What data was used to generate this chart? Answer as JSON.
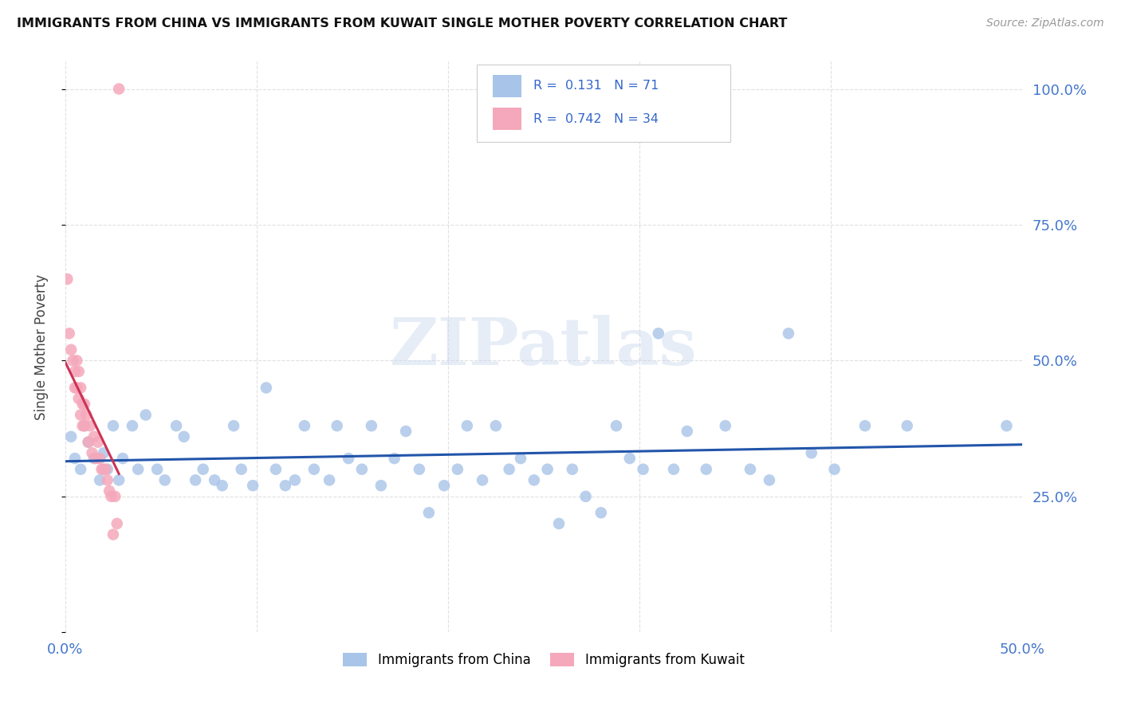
{
  "title": "IMMIGRANTS FROM CHINA VS IMMIGRANTS FROM KUWAIT SINGLE MOTHER POVERTY CORRELATION CHART",
  "source": "Source: ZipAtlas.com",
  "ylabel": "Single Mother Poverty",
  "xlim": [
    0.0,
    0.5
  ],
  "ylim": [
    0.0,
    1.05
  ],
  "x_ticks": [
    0.0,
    0.1,
    0.2,
    0.3,
    0.4,
    0.5
  ],
  "x_tick_labels": [
    "0.0%",
    "",
    "",
    "",
    "",
    "50.0%"
  ],
  "y_ticks": [
    0.0,
    0.25,
    0.5,
    0.75,
    1.0
  ],
  "y_tick_labels_right": [
    "",
    "25.0%",
    "50.0%",
    "75.0%",
    "100.0%"
  ],
  "china_color": "#a8c4e8",
  "kuwait_color": "#f5a8bb",
  "china_line_color": "#2255aa",
  "kuwait_line_color": "#cc3355",
  "R_china": 0.131,
  "N_china": 71,
  "R_kuwait": 0.742,
  "N_kuwait": 34,
  "legend_label_china": "Immigrants from China",
  "legend_label_kuwait": "Immigrants from Kuwait",
  "watermark": "ZIPatlas",
  "china_x": [
    0.003,
    0.005,
    0.008,
    0.01,
    0.012,
    0.015,
    0.018,
    0.02,
    0.022,
    0.025,
    0.028,
    0.03,
    0.035,
    0.038,
    0.042,
    0.048,
    0.052,
    0.058,
    0.062,
    0.068,
    0.072,
    0.078,
    0.082,
    0.088,
    0.092,
    0.098,
    0.105,
    0.11,
    0.115,
    0.12,
    0.125,
    0.13,
    0.138,
    0.142,
    0.148,
    0.155,
    0.16,
    0.165,
    0.172,
    0.178,
    0.185,
    0.19,
    0.198,
    0.205,
    0.21,
    0.218,
    0.225,
    0.232,
    0.238,
    0.245,
    0.252,
    0.258,
    0.265,
    0.272,
    0.28,
    0.288,
    0.295,
    0.302,
    0.31,
    0.318,
    0.325,
    0.335,
    0.345,
    0.358,
    0.368,
    0.378,
    0.39,
    0.402,
    0.418,
    0.44,
    0.492
  ],
  "china_y": [
    0.36,
    0.32,
    0.3,
    0.38,
    0.35,
    0.32,
    0.28,
    0.33,
    0.3,
    0.38,
    0.28,
    0.32,
    0.38,
    0.3,
    0.4,
    0.3,
    0.28,
    0.38,
    0.36,
    0.28,
    0.3,
    0.28,
    0.27,
    0.38,
    0.3,
    0.27,
    0.45,
    0.3,
    0.27,
    0.28,
    0.38,
    0.3,
    0.28,
    0.38,
    0.32,
    0.3,
    0.38,
    0.27,
    0.32,
    0.37,
    0.3,
    0.22,
    0.27,
    0.3,
    0.38,
    0.28,
    0.38,
    0.3,
    0.32,
    0.28,
    0.3,
    0.2,
    0.3,
    0.25,
    0.22,
    0.38,
    0.32,
    0.3,
    0.55,
    0.3,
    0.37,
    0.3,
    0.38,
    0.3,
    0.28,
    0.55,
    0.33,
    0.3,
    0.38,
    0.38,
    0.38
  ],
  "kuwait_x": [
    0.001,
    0.002,
    0.003,
    0.004,
    0.005,
    0.005,
    0.006,
    0.006,
    0.007,
    0.007,
    0.008,
    0.008,
    0.009,
    0.009,
    0.01,
    0.01,
    0.011,
    0.012,
    0.013,
    0.014,
    0.015,
    0.016,
    0.017,
    0.018,
    0.019,
    0.02,
    0.021,
    0.022,
    0.023,
    0.024,
    0.025,
    0.026,
    0.027,
    0.028
  ],
  "kuwait_y": [
    0.65,
    0.55,
    0.52,
    0.5,
    0.48,
    0.45,
    0.5,
    0.45,
    0.48,
    0.43,
    0.45,
    0.4,
    0.42,
    0.38,
    0.42,
    0.38,
    0.4,
    0.35,
    0.38,
    0.33,
    0.36,
    0.32,
    0.35,
    0.32,
    0.3,
    0.3,
    0.3,
    0.28,
    0.26,
    0.25,
    0.18,
    0.25,
    0.2,
    1.0
  ],
  "background_color": "#ffffff",
  "grid_color": "#e0e0e0"
}
